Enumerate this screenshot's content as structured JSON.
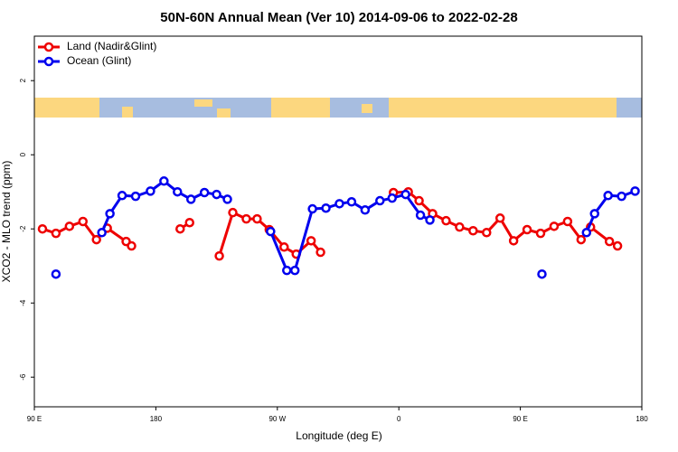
{
  "chart_data": {
    "type": "line",
    "title": "50N-60N Annual Mean (Ver 10)   2014-09-06 to 2022-02-28",
    "x_label": "Longitude (deg E)",
    "y_label": "XCO2 - MLO trend (ppm)",
    "xlim": [
      90,
      540
    ],
    "ylim": [
      -6.8,
      3.2
    ],
    "xticks": [
      {
        "value": 90,
        "label": "90 E"
      },
      {
        "value": 180,
        "label": "180"
      },
      {
        "value": 270,
        "label": "90 W"
      },
      {
        "value": 360,
        "label": "0"
      },
      {
        "value": 450,
        "label": "90 E"
      },
      {
        "value": 540,
        "label": "180"
      }
    ],
    "yticks": [
      2,
      0,
      -2,
      -4,
      -6
    ],
    "legend": "top-left",
    "series": [
      {
        "name": "Land (Nadir&Glint)",
        "color": "#ee0000",
        "x": [
          96,
          106,
          116,
          126,
          136,
          144,
          158,
          162,
          null,
          198,
          205,
          null,
          227,
          237,
          247,
          255,
          264,
          275,
          284,
          295,
          302,
          null,
          356,
          367,
          375,
          385,
          395,
          405,
          415,
          425,
          435,
          445,
          455,
          465,
          475,
          485,
          495,
          502,
          516,
          522
        ],
        "values": [
          -2.0,
          -2.12,
          -1.93,
          -1.8,
          -2.29,
          -1.98,
          -2.34,
          -2.46,
          null,
          -2.0,
          -1.83,
          null,
          -2.73,
          -1.56,
          -1.73,
          -1.73,
          -2.02,
          -2.49,
          -2.68,
          -2.32,
          -2.63,
          null,
          -1.02,
          -1.0,
          -1.24,
          -1.59,
          -1.78,
          -1.95,
          -2.05,
          -2.1,
          -1.71,
          -2.32,
          -2.02,
          -2.12,
          -1.93,
          -1.8,
          -2.29,
          -1.95,
          -2.34,
          -2.46
        ]
      },
      {
        "name": "Ocean (Glint)",
        "color": "#0000ee",
        "x": [
          106,
          null,
          140,
          146,
          155,
          165,
          176,
          186,
          196,
          206,
          216,
          225,
          233,
          null,
          265,
          277,
          283,
          296,
          306,
          316,
          325,
          335,
          346,
          355,
          365,
          376,
          383,
          null,
          466,
          null,
          499,
          505,
          515,
          525,
          535
        ],
        "values": [
          -3.22,
          null,
          -2.1,
          -1.59,
          -1.1,
          -1.12,
          -0.98,
          -0.71,
          -1.0,
          -1.2,
          -1.02,
          -1.07,
          -1.2,
          null,
          -2.07,
          -3.12,
          -3.12,
          -1.46,
          -1.44,
          -1.32,
          -1.27,
          -1.49,
          -1.24,
          -1.17,
          -1.07,
          -1.63,
          -1.76,
          null,
          -3.22,
          null,
          -2.1,
          -1.59,
          -1.1,
          -1.12,
          -0.98
        ]
      }
    ]
  }
}
